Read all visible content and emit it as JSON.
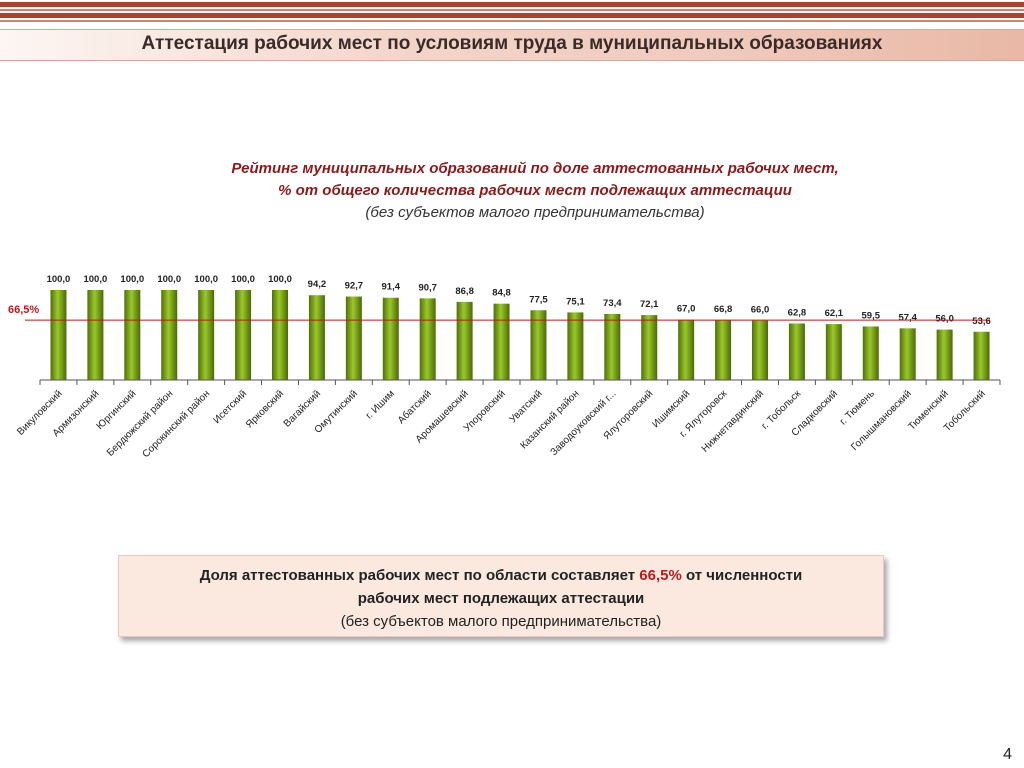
{
  "header": {
    "title": "Аттестация рабочих мест по условиям труда в муниципальных образованиях"
  },
  "chart_title": {
    "line1": "Рейтинг муниципальных образований по доле аттестованных рабочих мест,",
    "line2": "% от общего количества рабочих мест подлежащих аттестации",
    "line3": "(без субъектов малого предпринимательства)"
  },
  "chart_data": {
    "type": "bar",
    "categories": [
      "Викуловский",
      "Армизонский",
      "Юргинский",
      "Бердюжский район",
      "Сорокинский район",
      "Исетский",
      "Ярковский",
      "Вагайский",
      "Омутинский",
      "г. Ишим",
      "Абатский",
      "Аромашевский",
      "Упоровский",
      "Уватский",
      "Казанский район",
      "Заводоуковский г...",
      "Ялуторовский",
      "Ишимский",
      "г. Ялуторовск",
      "Нижнетавдинский",
      "г. Тобольск",
      "Сладковский",
      "г. Тюмень",
      "Голышмановский",
      "Тюменский",
      "Тобольский"
    ],
    "values": [
      100.0,
      100.0,
      100.0,
      100.0,
      100.0,
      100.0,
      100.0,
      94.2,
      92.7,
      91.4,
      90.7,
      86.8,
      84.8,
      77.5,
      75.1,
      73.4,
      72.1,
      67.0,
      66.8,
      66.0,
      62.8,
      62.1,
      59.5,
      57.4,
      56.0,
      53.6
    ],
    "value_labels": [
      "100,0",
      "100,0",
      "100,0",
      "100,0",
      "100,0",
      "100,0",
      "100,0",
      "94,2",
      "92,7",
      "91,4",
      "90,7",
      "86,8",
      "84,8",
      "77,5",
      "75,1",
      "73,4",
      "72,1",
      "67,0",
      "66,8",
      "66,0",
      "62,8",
      "62,1",
      "59,5",
      "57,4",
      "56,0",
      "53,6"
    ],
    "reference_line": {
      "value": 66.5,
      "label": "66,5%",
      "color": "#c0181b"
    },
    "ylim": [
      0,
      100
    ],
    "bar_color": "#6f9a10",
    "grid": false,
    "legend": "none"
  },
  "info_box": {
    "part1": "Доля аттестованных рабочих мест по  области составляет ",
    "highlight": "66,5%",
    "part2": " от численности",
    "line2": "рабочих мест подлежащих аттестации",
    "line3": "(без субъектов малого предпринимательства)"
  },
  "footer": {
    "page_number": "4"
  }
}
